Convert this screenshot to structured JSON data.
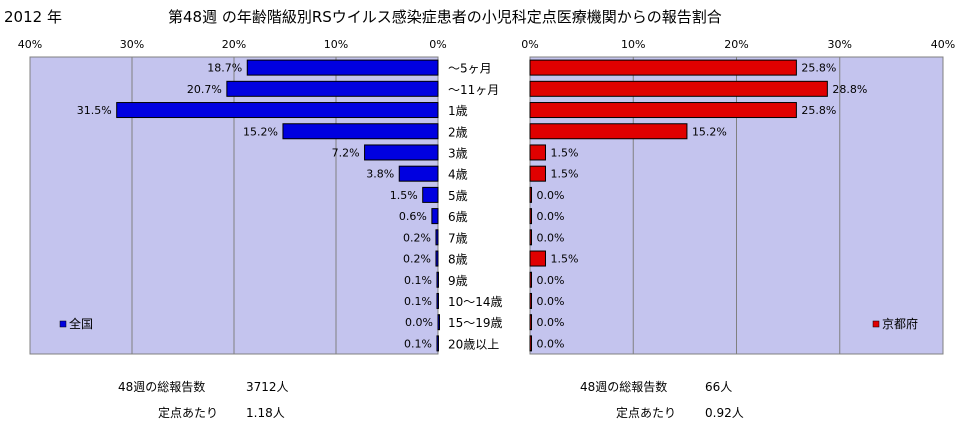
{
  "header": {
    "year": "2012 年",
    "title": "第48週 の年齢階級別RSウイルス感染症患者の小児科定点医療機関からの報告割合"
  },
  "chart_data": [
    {
      "type": "bar",
      "orientation": "horizontal",
      "direction": "right-to-left",
      "series": [
        {
          "name": "全国",
          "values": [
            18.7,
            20.7,
            31.5,
            15.2,
            7.2,
            3.8,
            1.5,
            0.6,
            0.2,
            0.2,
            0.1,
            0.1,
            0.0,
            0.1
          ]
        }
      ],
      "value_labels": [
        "18.7%",
        "20.7%",
        "31.5%",
        "15.2%",
        "7.2%",
        "3.8%",
        "1.5%",
        "0.6%",
        "0.2%",
        "0.2%",
        "0.1%",
        "0.1%",
        "0.0%",
        "0.1%"
      ],
      "xlim": [
        0,
        40
      ],
      "ticks": [
        "40%",
        "30%",
        "20%",
        "10%",
        "0%"
      ],
      "legend": "bottom-left",
      "grid": true,
      "bar_color": "#0000e0",
      "plot_bg": "#c4c4ee"
    },
    {
      "type": "bar",
      "orientation": "horizontal",
      "direction": "left-to-right",
      "series": [
        {
          "name": "京都府",
          "values": [
            25.8,
            28.8,
            25.8,
            15.2,
            1.5,
            1.5,
            0.0,
            0.0,
            0.0,
            1.5,
            0.0,
            0.0,
            0.0,
            0.0
          ]
        }
      ],
      "value_labels": [
        "25.8%",
        "28.8%",
        "25.8%",
        "15.2%",
        "1.5%",
        "1.5%",
        "0.0%",
        "0.0%",
        "0.0%",
        "1.5%",
        "0.0%",
        "0.0%",
        "0.0%",
        "0.0%"
      ],
      "xlim": [
        0,
        40
      ],
      "ticks": [
        "0%",
        "10%",
        "20%",
        "30%",
        "40%"
      ],
      "legend": "bottom-right",
      "grid": true,
      "bar_color": "#e00000",
      "plot_bg": "#c4c4ee"
    }
  ],
  "categories": [
    "～5ヶ月",
    "～11ヶ月",
    "1歳",
    "2歳",
    "3歳",
    "4歳",
    "5歳",
    "6歳",
    "7歳",
    "8歳",
    "9歳",
    "10～14歳",
    "15～19歳",
    "20歳以上"
  ],
  "stats": {
    "national": {
      "total_label": "48週の総報告数",
      "total_value": "3712人",
      "per_label": "定点あたり",
      "per_value": "1.18人"
    },
    "kyoto": {
      "total_label": "48週の総報告数",
      "total_value": "66人",
      "per_label": "定点あたり",
      "per_value": "0.92人"
    }
  }
}
